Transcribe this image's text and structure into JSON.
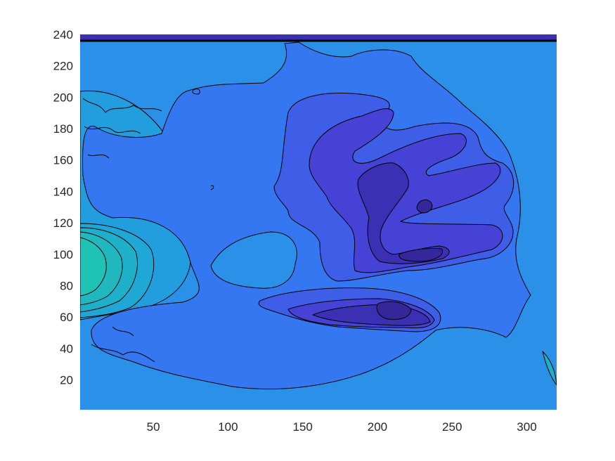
{
  "chart_data": {
    "type": "contour",
    "title": "",
    "xlabel": "",
    "ylabel": "",
    "xlim": [
      1,
      320
    ],
    "ylim": [
      1,
      240
    ],
    "xticks": [
      50,
      100,
      150,
      200,
      250,
      300
    ],
    "yticks": [
      20,
      40,
      60,
      80,
      100,
      120,
      140,
      160,
      180,
      200,
      220,
      240
    ],
    "xtick_labels": [
      "50",
      "100",
      "150",
      "200",
      "250",
      "300"
    ],
    "ytick_labels": [
      "20",
      "40",
      "60",
      "80",
      "100",
      "120",
      "140",
      "160",
      "180",
      "200",
      "220",
      "240"
    ],
    "colormap": "parula",
    "level_colors": [
      "#3b2fb3",
      "#4742d6",
      "#3f5ee8",
      "#3477f0",
      "#2a90e8",
      "#229edf",
      "#20b3c8",
      "#1fc2b4"
    ],
    "background_level_color": "#2a90e8",
    "regions": [
      {
        "name": "left-hot-lobe",
        "center": [
          5,
          95
        ],
        "level_max": 7
      },
      {
        "name": "hand-palm",
        "center": [
          215,
          115
        ],
        "level_min": 1
      },
      {
        "name": "lower-finger",
        "center": [
          205,
          60
        ],
        "level_min": 0
      },
      {
        "name": "central-pocket",
        "center": [
          120,
          95
        ],
        "level": 4
      },
      {
        "name": "top-edge-band",
        "y": [
          236,
          240
        ],
        "level": 0
      },
      {
        "name": "right-edge-spike",
        "center": [
          316,
          30
        ],
        "level_max": 6
      }
    ],
    "grid": false,
    "legend": "none"
  }
}
